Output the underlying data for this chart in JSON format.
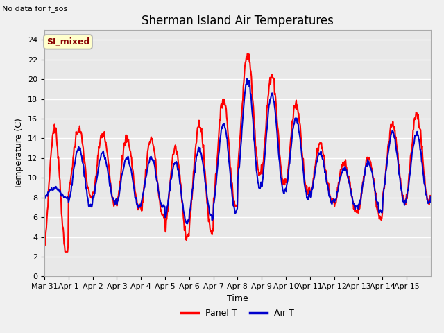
{
  "title": "Sherman Island Air Temperatures",
  "subtitle": "No data for f_sos",
  "xlabel": "Time",
  "ylabel": "Temperature (C)",
  "legend_label1": "Panel T",
  "legend_label2": "Air T",
  "legend_color1": "#ff0000",
  "legend_color2": "#0000cc",
  "box_label": "SI_mixed",
  "box_facecolor": "#ffffcc",
  "box_edgecolor": "#aaaaaa",
  "box_textcolor": "#880000",
  "ylim": [
    0,
    25
  ],
  "yticks": [
    0,
    2,
    4,
    6,
    8,
    10,
    12,
    14,
    16,
    18,
    20,
    22,
    24
  ],
  "xtick_labels": [
    "Mar 31",
    "Apr 1",
    "Apr 2",
    "Apr 3",
    "Apr 4",
    "Apr 5",
    "Apr 6",
    "Apr 7",
    "Apr 8",
    "Apr 9",
    "Apr 10",
    "Apr 11",
    "Apr 12",
    "Apr 13",
    "Apr 14",
    "Apr 15"
  ],
  "plot_bg_color": "#e8e8e8",
  "fig_bg_color": "#f0f0f0",
  "title_fontsize": 12,
  "axis_label_fontsize": 9,
  "tick_fontsize": 8,
  "line_width": 1.5
}
